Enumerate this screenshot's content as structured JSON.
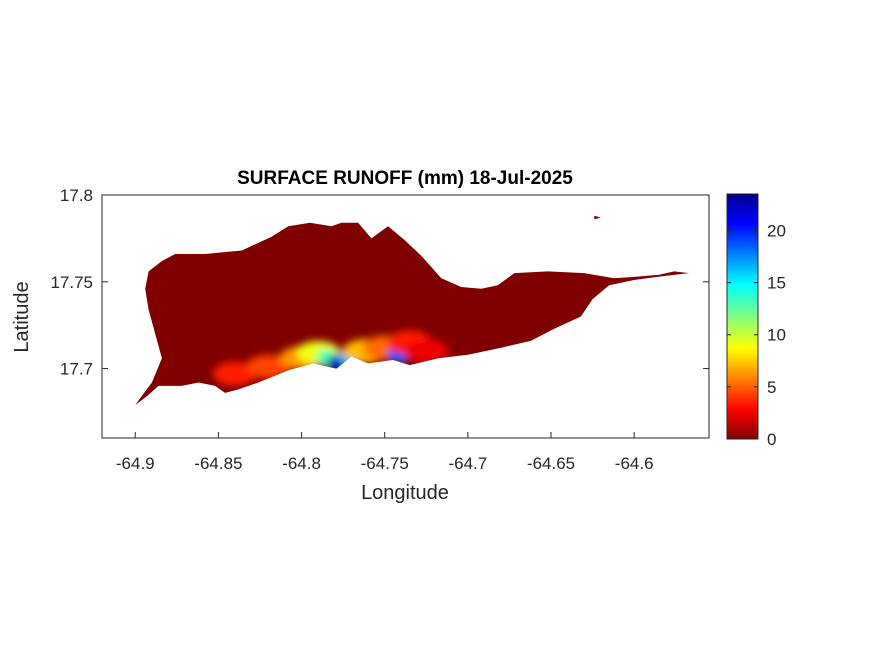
{
  "chart_data": {
    "type": "heatmap",
    "title": "SURFACE RUNOFF (mm) 18-Jul-2025",
    "xlabel": "Longitude",
    "ylabel": "Latitude",
    "xlim": [
      -64.92,
      -64.555
    ],
    "ylim": [
      17.66,
      17.8
    ],
    "xticks": [
      -64.9,
      -64.85,
      -64.8,
      -64.75,
      -64.7,
      -64.65,
      -64.6
    ],
    "xtick_labels": [
      "-64.9",
      "-64.85",
      "-64.8",
      "-64.75",
      "-64.7",
      "-64.65",
      "-64.6"
    ],
    "yticks": [
      17.7,
      17.75,
      17.8
    ],
    "ytick_labels": [
      "17.7",
      "17.75",
      "17.8"
    ],
    "colorbar": {
      "colormap": "jet",
      "range": [
        0,
        23.5
      ],
      "ticks": [
        0,
        5,
        10,
        15,
        20
      ],
      "tick_labels": [
        "0",
        "5",
        "10",
        "15",
        "20"
      ]
    },
    "background_value_mm": 0,
    "island_outline": [
      [
        -64.9,
        17.679
      ],
      [
        -64.893,
        17.684
      ],
      [
        -64.886,
        17.69
      ],
      [
        -64.872,
        17.69
      ],
      [
        -64.862,
        17.692
      ],
      [
        -64.852,
        17.69
      ],
      [
        -64.846,
        17.686
      ],
      [
        -64.838,
        17.688
      ],
      [
        -64.826,
        17.692
      ],
      [
        -64.808,
        17.699
      ],
      [
        -64.793,
        17.703
      ],
      [
        -64.779,
        17.7
      ],
      [
        -64.77,
        17.707
      ],
      [
        -64.76,
        17.703
      ],
      [
        -64.745,
        17.705
      ],
      [
        -64.735,
        17.702
      ],
      [
        -64.718,
        17.706
      ],
      [
        -64.7,
        17.708
      ],
      [
        -64.68,
        17.712
      ],
      [
        -64.662,
        17.716
      ],
      [
        -64.648,
        17.723
      ],
      [
        -64.632,
        17.73
      ],
      [
        -64.625,
        17.74
      ],
      [
        -64.615,
        17.748
      ],
      [
        -64.6,
        17.751
      ],
      [
        -64.585,
        17.753
      ],
      [
        -64.567,
        17.755
      ],
      [
        -64.576,
        17.756
      ],
      [
        -64.585,
        17.754
      ],
      [
        -64.598,
        17.753
      ],
      [
        -64.612,
        17.752
      ],
      [
        -64.63,
        17.755
      ],
      [
        -64.652,
        17.756
      ],
      [
        -64.672,
        17.755
      ],
      [
        -64.682,
        17.748
      ],
      [
        -64.692,
        17.746
      ],
      [
        -64.704,
        17.747
      ],
      [
        -64.716,
        17.752
      ],
      [
        -64.728,
        17.765
      ],
      [
        -64.738,
        17.774
      ],
      [
        -64.748,
        17.782
      ],
      [
        -64.758,
        17.775
      ],
      [
        -64.766,
        17.784
      ],
      [
        -64.776,
        17.784
      ],
      [
        -64.782,
        17.782
      ],
      [
        -64.795,
        17.784
      ],
      [
        -64.808,
        17.782
      ],
      [
        -64.818,
        17.776
      ],
      [
        -64.836,
        17.768
      ],
      [
        -64.858,
        17.766
      ],
      [
        -64.876,
        17.766
      ],
      [
        -64.884,
        17.762
      ],
      [
        -64.892,
        17.756
      ],
      [
        -64.894,
        17.746
      ],
      [
        -64.892,
        17.734
      ],
      [
        -64.888,
        17.72
      ],
      [
        -64.884,
        17.706
      ],
      [
        -64.89,
        17.692
      ],
      [
        -64.897,
        17.683
      ]
    ],
    "islet_outline": [
      [
        -64.624,
        17.788
      ],
      [
        -64.62,
        17.787
      ],
      [
        -64.624,
        17.786
      ]
    ],
    "runoff_patches_mm": [
      {
        "lon": -64.84,
        "lat": 17.697,
        "value": 3
      },
      {
        "lon": -64.82,
        "lat": 17.701,
        "value": 4
      },
      {
        "lon": -64.8,
        "lat": 17.706,
        "value": 6
      },
      {
        "lon": -64.79,
        "lat": 17.709,
        "value": 9
      },
      {
        "lon": -64.785,
        "lat": 17.706,
        "value": 13
      },
      {
        "lon": -64.778,
        "lat": 17.703,
        "value": 23
      },
      {
        "lon": -64.772,
        "lat": 17.706,
        "value": 17
      },
      {
        "lon": -64.762,
        "lat": 17.71,
        "value": 7
      },
      {
        "lon": -64.75,
        "lat": 17.712,
        "value": 5
      },
      {
        "lon": -64.742,
        "lat": 17.708,
        "value": 19
      },
      {
        "lon": -64.735,
        "lat": 17.715,
        "value": 3
      },
      {
        "lon": -64.725,
        "lat": 17.71,
        "value": 2
      }
    ]
  }
}
